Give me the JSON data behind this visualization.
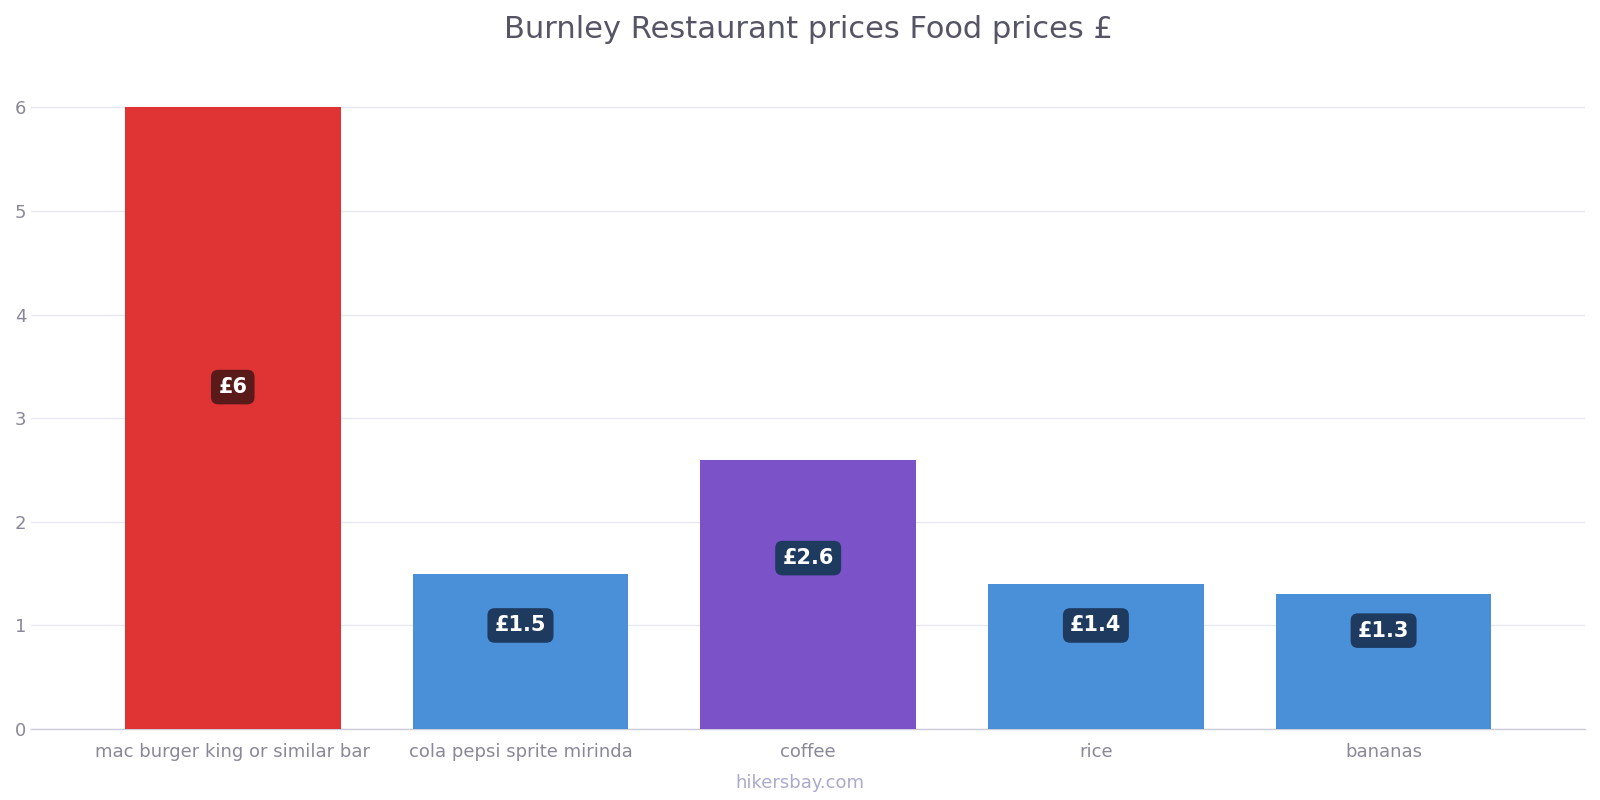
{
  "title": "Burnley Restaurant prices Food prices £",
  "categories": [
    "mac burger king or similar bar",
    "cola pepsi sprite mirinda",
    "coffee",
    "rice",
    "bananas"
  ],
  "values": [
    6.0,
    1.5,
    2.6,
    1.4,
    1.3
  ],
  "bar_colors": [
    "#e03434",
    "#4a90d9",
    "#7b52c8",
    "#4a90d9",
    "#4a90d9"
  ],
  "label_texts": [
    "£6",
    "£1.5",
    "£2.6",
    "£1.4",
    "£1.3"
  ],
  "label_box_color_first": "#5a1a1a",
  "label_box_color_rest": "#1e3a5f",
  "label_text_color": "#ffffff",
  "label_positions_y": [
    3.3,
    1.0,
    1.65,
    1.0,
    0.95
  ],
  "ylim": [
    0,
    6.4
  ],
  "yticks": [
    0,
    1,
    2,
    3,
    4,
    5,
    6
  ],
  "background_color": "#ffffff",
  "grid_color": "#e8e8f0",
  "title_fontsize": 22,
  "tick_fontsize": 13,
  "watermark": "hikersbay.com",
  "watermark_color": "#aaaacc",
  "bar_width": 0.75
}
